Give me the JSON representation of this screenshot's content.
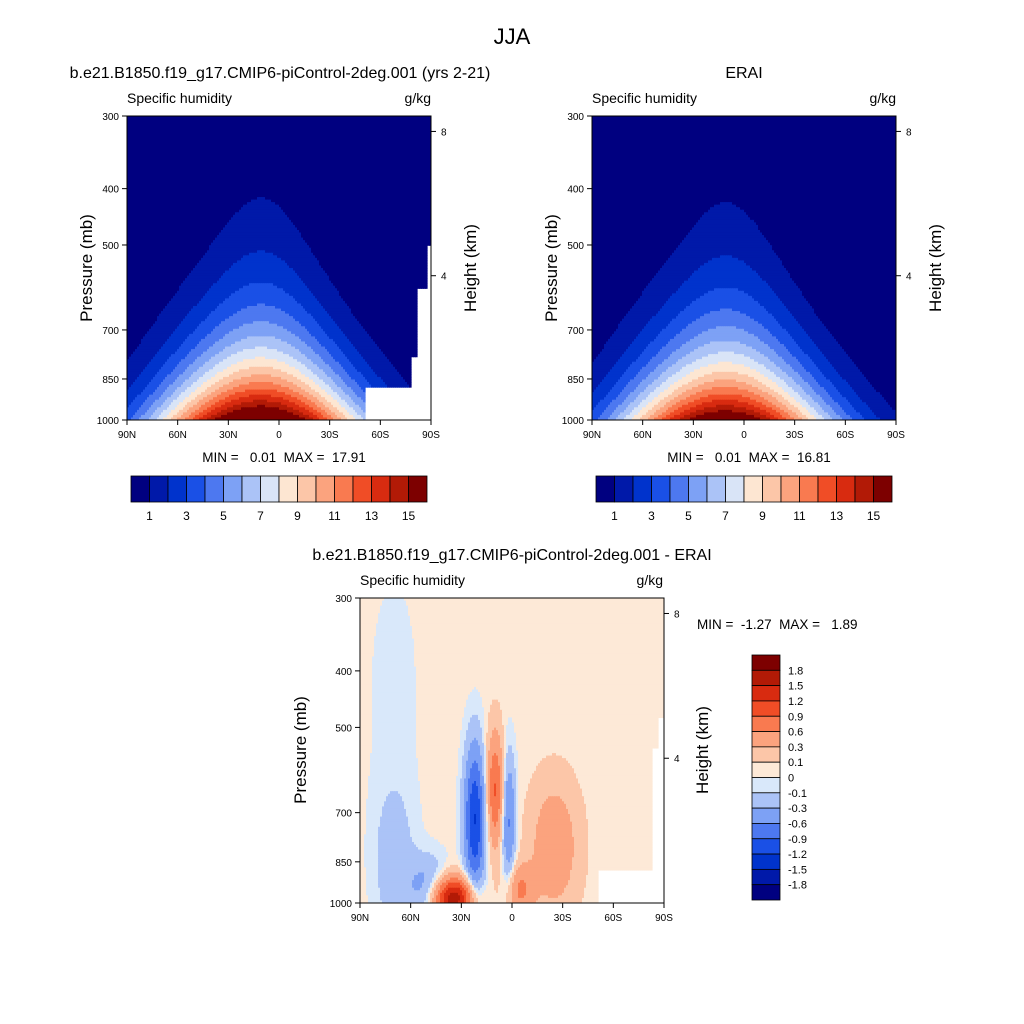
{
  "page": {
    "title": "JJA"
  },
  "palettes": {
    "humidity": [
      "#000080",
      "#0019a9",
      "#0033cc",
      "#1a50e6",
      "#4d78f0",
      "#7da1f5",
      "#abc3f7",
      "#d9e4f7",
      "#fde6d2",
      "#fcc6a8",
      "#fba37e",
      "#f97a50",
      "#f04d26",
      "#d82b10",
      "#b21a06",
      "#7d0000"
    ],
    "difference": [
      "#000080",
      "#0019a9",
      "#0033cc",
      "#1a50e6",
      "#4d78f0",
      "#7da1f5",
      "#abc3f7",
      "#d9e8fa",
      "#fde9d7",
      "#fcc6a8",
      "#fba37e",
      "#f97a50",
      "#f04d26",
      "#d82b10",
      "#b21a06",
      "#7d0000"
    ]
  },
  "chart_data": [
    {
      "type": "contour",
      "id": "model",
      "title": "b.e21.B1850.f19_g17.CMIP6-piControl-2deg.001 (yrs 2-21)",
      "left_label": "Specific humidity",
      "right_label": "g/kg",
      "ylabel": "Pressure (mb)",
      "ylabel_right": "Height (km)",
      "y_ticks": [
        "300",
        "400",
        "500",
        "700",
        "850",
        "1000"
      ],
      "y_tick_values": [
        300,
        400,
        500,
        700,
        850,
        1000
      ],
      "right_ticks": [
        "8",
        "4"
      ],
      "right_tick_values": [
        8,
        4
      ],
      "x_ticks": [
        "90N",
        "60N",
        "30N",
        "0",
        "30S",
        "60S",
        "90S"
      ],
      "x_tick_values": [
        90,
        60,
        30,
        0,
        -30,
        -60,
        -90
      ],
      "stats": "MIN =   0.01  MAX =  17.91",
      "min": 0.01,
      "max": 17.91,
      "peak_lat": 10,
      "missing_region": "south-pole lower levels",
      "colorbar": {
        "orientation": "horizontal",
        "labels": [
          "1",
          "3",
          "5",
          "7",
          "9",
          "11",
          "13",
          "15"
        ],
        "levels": [
          1,
          2,
          3,
          4,
          5,
          6,
          7,
          8,
          9,
          10,
          11,
          12,
          13,
          14,
          15
        ]
      }
    },
    {
      "type": "contour",
      "id": "obs",
      "title": "ERAI",
      "left_label": "Specific humidity",
      "right_label": "g/kg",
      "ylabel": "Pressure (mb)",
      "ylabel_right": "Height (km)",
      "y_ticks": [
        "300",
        "400",
        "500",
        "700",
        "850",
        "1000"
      ],
      "y_tick_values": [
        300,
        400,
        500,
        700,
        850,
        1000
      ],
      "right_ticks": [
        "8",
        "4"
      ],
      "right_tick_values": [
        8,
        4
      ],
      "x_ticks": [
        "90N",
        "60N",
        "30N",
        "0",
        "30S",
        "60S",
        "90S"
      ],
      "x_tick_values": [
        90,
        60,
        30,
        0,
        -30,
        -60,
        -90
      ],
      "stats": "MIN =   0.01  MAX =  16.81",
      "min": 0.01,
      "max": 16.81,
      "peak_lat": 10,
      "colorbar": {
        "orientation": "horizontal",
        "labels": [
          "1",
          "3",
          "5",
          "7",
          "9",
          "11",
          "13",
          "15"
        ],
        "levels": [
          1,
          2,
          3,
          4,
          5,
          6,
          7,
          8,
          9,
          10,
          11,
          12,
          13,
          14,
          15
        ]
      }
    },
    {
      "type": "contour",
      "id": "diff",
      "title": "b.e21.B1850.f19_g17.CMIP6-piControl-2deg.001 - ERAI",
      "left_label": "Specific humidity",
      "right_label": "g/kg",
      "ylabel": "Pressure (mb)",
      "ylabel_right": "Height (km)",
      "y_ticks": [
        "300",
        "400",
        "500",
        "700",
        "850",
        "1000"
      ],
      "y_tick_values": [
        300,
        400,
        500,
        700,
        850,
        1000
      ],
      "right_ticks": [
        "8",
        "4"
      ],
      "right_tick_values": [
        8,
        4
      ],
      "x_ticks": [
        "90N",
        "60N",
        "30N",
        "0",
        "30S",
        "60S",
        "90S"
      ],
      "x_tick_values": [
        90,
        60,
        30,
        0,
        -30,
        -60,
        -90
      ],
      "stats": "MIN =  -1.27  MAX =   1.89",
      "min": -1.27,
      "max": 1.89,
      "colorbar": {
        "orientation": "vertical",
        "labels": [
          "1.8",
          "1.5",
          "1.2",
          "0.9",
          "0.6",
          "0.3",
          "0.1",
          "0",
          "-0.1",
          "-0.3",
          "-0.6",
          "-0.9",
          "-1.2",
          "-1.5",
          "-1.8"
        ],
        "levels": [
          1.8,
          1.5,
          1.2,
          0.9,
          0.6,
          0.3,
          0.1,
          0,
          -0.1,
          -0.3,
          -0.6,
          -0.9,
          -1.2,
          -1.5,
          -1.8
        ]
      }
    }
  ]
}
